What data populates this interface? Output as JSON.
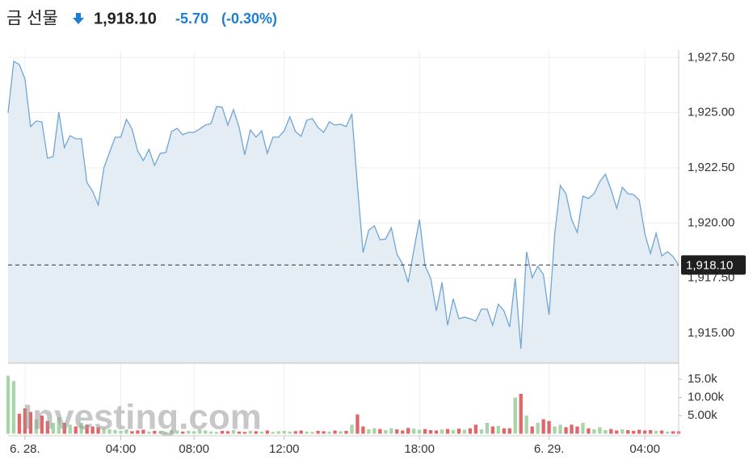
{
  "header": {
    "title": "금 선물",
    "price": "1,918.10",
    "change": "-5.70",
    "change_percent": "(-0.30%)"
  },
  "watermark": "Investing.com",
  "chart_data": [
    {
      "type": "area",
      "color": "#6fa6d4",
      "fill": "#e4ecf4",
      "categories": [
        null,
        null,
        null,
        "6. 28.",
        null,
        null,
        null,
        null,
        null,
        null,
        null,
        null,
        null,
        null,
        null,
        null,
        null,
        null,
        null,
        null,
        "04:00",
        null,
        null,
        null,
        null,
        null,
        null,
        null,
        null,
        null,
        null,
        null,
        null,
        "08:00",
        null,
        null,
        null,
        null,
        null,
        null,
        null,
        null,
        null,
        null,
        null,
        null,
        null,
        null,
        null,
        "12:00",
        null,
        null,
        null,
        null,
        null,
        null,
        null,
        null,
        null,
        null,
        null,
        null,
        null,
        null,
        null,
        null,
        null,
        null,
        null,
        null,
        null,
        null,
        null,
        "18:00",
        null,
        null,
        null,
        null,
        null,
        null,
        null,
        null,
        null,
        null,
        null,
        null,
        null,
        null,
        null,
        null,
        null,
        null,
        null,
        null,
        null,
        null,
        "6. 29.",
        null,
        null,
        null,
        null,
        null,
        null,
        null,
        null,
        null,
        null,
        null,
        null,
        null,
        null,
        null,
        null,
        "04:00",
        null,
        null,
        null,
        null,
        null,
        null
      ],
      "values": [
        1924.99,
        1927.33,
        1927.18,
        1926.53,
        1924.37,
        1924.62,
        1924.59,
        1922.94,
        1923.01,
        1925.03,
        1923.42,
        1923.96,
        1923.82,
        1923.82,
        1921.84,
        1921.44,
        1920.82,
        1922.5,
        1923.2,
        1923.89,
        1923.89,
        1924.7,
        1924.26,
        1923.27,
        1922.83,
        1923.34,
        1922.61,
        1923.16,
        1923.2,
        1924.15,
        1924.29,
        1924.0,
        1924.11,
        1924.11,
        1924.26,
        1924.44,
        1924.51,
        1925.28,
        1925.25,
        1924.44,
        1925.14,
        1924.33,
        1923.09,
        1924.22,
        1923.89,
        1924.18,
        1923.16,
        1923.89,
        1923.89,
        1924.18,
        1924.81,
        1924.15,
        1923.93,
        1924.66,
        1924.73,
        1924.33,
        1924.11,
        1924.59,
        1924.44,
        1924.48,
        1924.37,
        1924.95,
        1921.7,
        1918.66,
        1919.68,
        1919.87,
        1919.24,
        1919.28,
        1919.79,
        1918.59,
        1918.15,
        1917.31,
        1918.77,
        1920.16,
        1918.07,
        1917.49,
        1916.02,
        1917.31,
        1915.37,
        1916.57,
        1915.66,
        1915.73,
        1915.66,
        1915.55,
        1916.1,
        1916.1,
        1915.37,
        1916.32,
        1916.02,
        1915.29,
        1917.49,
        1914.3,
        1918.7,
        1917.52,
        1918.04,
        1917.67,
        1915.84,
        1919.5,
        1921.7,
        1921.33,
        1920.16,
        1919.57,
        1921.22,
        1921.11,
        1921.33,
        1921.88,
        1922.21,
        1921.51,
        1920.67,
        1921.62,
        1921.33,
        1921.29,
        1921.04,
        1919.5,
        1918.62,
        1919.54,
        1918.51,
        1918.7,
        1918.48,
        1918.1
      ],
      "ylim": [
        1913.65,
        1927.84
      ],
      "yticks": [
        {
          "value": 1915,
          "label": "1,915.00"
        },
        {
          "value": 1917.5,
          "label": "1,917.50"
        },
        {
          "value": 1920,
          "label": "1,920.00"
        },
        {
          "value": 1922.5,
          "label": "1,922.50"
        },
        {
          "value": 1925,
          "label": "1,925.00"
        },
        {
          "value": 1927.5,
          "label": "1,927.50"
        }
      ],
      "last_price": {
        "value": 1918.1,
        "label": "1,918.10"
      },
      "grid": true
    },
    {
      "type": "bar",
      "up_color": "#a8d5a8",
      "down_color": "#e0666a",
      "values": [
        16000,
        14500,
        5500,
        7000,
        6000,
        4000,
        5000,
        3500,
        3000,
        4500,
        3000,
        2500,
        2000,
        3000,
        2500,
        2000,
        1800,
        1500,
        1200,
        1000,
        800,
        1200,
        700,
        900,
        1100,
        600,
        800,
        700,
        500,
        1000,
        900,
        600,
        800,
        700,
        1200,
        900,
        600,
        500,
        800,
        700,
        1000,
        600,
        500,
        800,
        700,
        600,
        900,
        500,
        700,
        800,
        600,
        700,
        900,
        600,
        500,
        800,
        700,
        600,
        900,
        700,
        800,
        2500,
        5300,
        2000,
        1200,
        1500,
        1300,
        1000,
        1500,
        1200,
        900,
        1600,
        1400,
        1100,
        1300,
        1000,
        900,
        1200,
        1300,
        1000,
        1400,
        1100,
        1500,
        2500,
        1200,
        3000,
        2000,
        2200,
        1500,
        1500,
        10000,
        11000,
        5000,
        2000,
        3000,
        4000,
        3500,
        2000,
        2500,
        1800,
        2500,
        2000,
        3000,
        1500,
        1200,
        1800,
        1000,
        1300,
        900,
        1200,
        1000,
        800,
        1100,
        900,
        1000,
        800,
        900,
        600,
        700,
        700
      ],
      "ylim": [
        0,
        17000
      ],
      "yticks": [
        {
          "value": 5000,
          "label": "5.00k"
        },
        {
          "value": 10000,
          "label": "10.00k"
        },
        {
          "value": 15000,
          "label": "15.0k"
        }
      ]
    }
  ]
}
